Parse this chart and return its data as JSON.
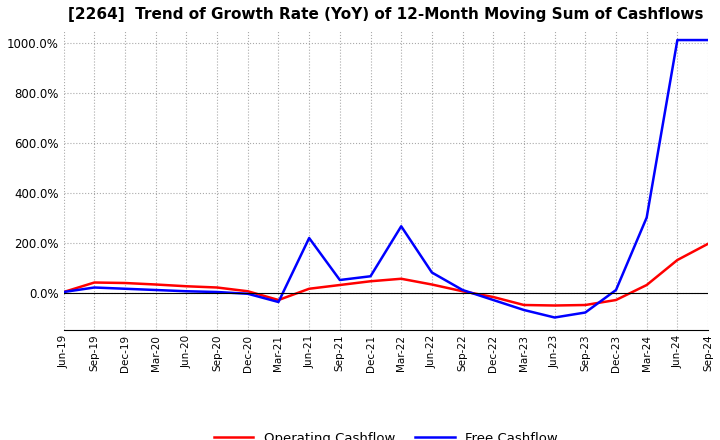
{
  "title": "[2264]  Trend of Growth Rate (YoY) of 12-Month Moving Sum of Cashflows",
  "title_fontsize": 11,
  "ylim": [
    -150,
    1050
  ],
  "yticks": [
    0.0,
    200.0,
    400.0,
    600.0,
    800.0,
    1000.0
  ],
  "background_color": "#ffffff",
  "grid_color": "#aaaaaa",
  "legend_labels": [
    "Operating Cashflow",
    "Free Cashflow"
  ],
  "legend_colors": [
    "#ff0000",
    "#0000ff"
  ],
  "x_labels": [
    "Jun-19",
    "Sep-19",
    "Dec-19",
    "Mar-20",
    "Jun-20",
    "Sep-20",
    "Dec-20",
    "Mar-21",
    "Jun-21",
    "Sep-21",
    "Dec-21",
    "Mar-22",
    "Jun-22",
    "Sep-22",
    "Dec-22",
    "Mar-23",
    "Jun-23",
    "Sep-23",
    "Dec-23",
    "Mar-24",
    "Jun-24",
    "Sep-24"
  ],
  "operating_cashflow": [
    2.0,
    40.0,
    38.0,
    32.0,
    25.0,
    20.0,
    5.0,
    -30.0,
    15.0,
    30.0,
    45.0,
    55.0,
    32.0,
    5.0,
    -18.0,
    -50.0,
    -52.0,
    -50.0,
    -30.0,
    30.0,
    130.0,
    195.0
  ],
  "free_cashflow": [
    2.0,
    20.0,
    15.0,
    10.0,
    5.0,
    2.0,
    -5.0,
    -38.0,
    218.0,
    50.0,
    65.0,
    265.0,
    80.0,
    10.0,
    -30.0,
    -70.0,
    -100.0,
    -80.0,
    10.0,
    300.0,
    1010.0,
    1010.0
  ]
}
